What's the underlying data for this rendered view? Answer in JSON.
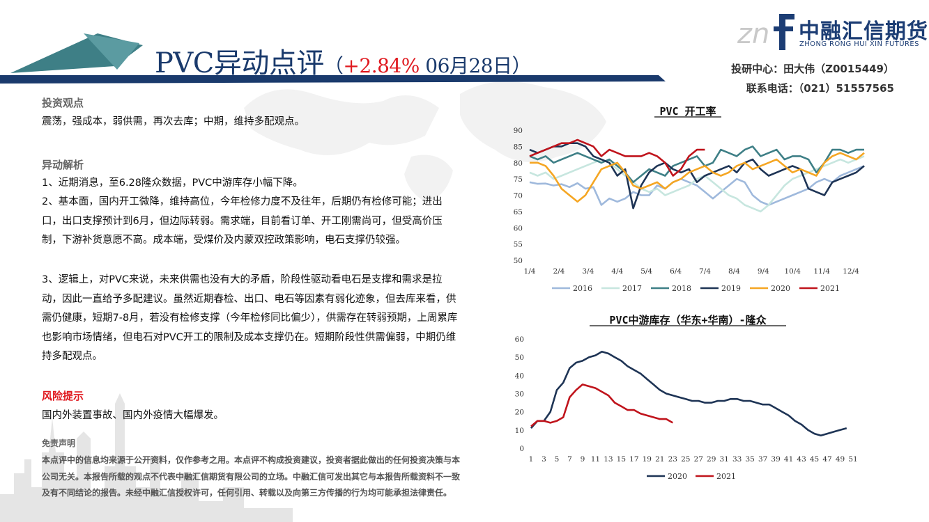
{
  "header": {
    "title_main": "PVC异动点评",
    "paren_open": "（",
    "change_pct": "+2.84%",
    "date": "06月28日",
    "paren_close": "）",
    "logo_cn": "中融汇信期货",
    "logo_en": "ZHONG RONG HUI XIN FUTURES",
    "research": "投研中心：田大伟（Z0015449）",
    "phone": "联系电话：（021）51557565"
  },
  "colors": {
    "navy": "#1a3a6c",
    "accent_red": "#e0191f",
    "teal": "#3e7f86"
  },
  "sections": {
    "view_title": "投资观点",
    "view_text": "震荡，强成本，弱供需，再次去库；中期，维持多配观点。",
    "analysis_title": "异动解析",
    "analysis_1": "1、近期消息，至6.28隆众数据，PVC中游库存小幅下降。",
    "analysis_2": "2、基本面，国内开工微降，维持高位，今年检修力度不及往年，后期仍有检修可能；进出口，出口支撑预计到6月，但边际转弱。需求端，目前看订单、开工刚需尚可，但受高价压制，下游补货意愿不高。成本端，受煤价及内蒙双控政策影响，电石支撑仍较强。",
    "analysis_3": "3、逻辑上，对PVC来说，未来供需也没有大的矛盾，阶段性驱动看电石是支撑和需求是拉动，因此一直给予多配建议。虽然近期春检、出口、电石等因素有弱化迹象，但去库来看，供需仍健康，短期7-8月，若没有检修支撑（今年检修同比偏少），供需存在转弱预期，上周累库也影响市场情绪，但电石对PVC开工的限制及成本支撑仍在。短期阶段性供需偏弱，中期仍维持多配观点。",
    "risk_title": "风险提示",
    "risk_text": "国内外装置事故、国内外疫情大幅爆发。",
    "disclaimer_title": "免责声明",
    "disclaimer_text": "本点评中的信息均来源于公开资料，仅作参考之用。本点评不构成投资建议，投资者据此做出的任何投资决策与本公司无关。本报告所载的观点不代表中融汇信期货有限公司的立场。中融汇信可发出其它与本报告所载资料不一致及有不同结论的报告。未经中融汇信授权许可，任何引用、转载以及向第三方传播的行为均可能承担法律责任。"
  },
  "chart_data": [
    {
      "type": "line",
      "title": "PVC 开工率",
      "ylim": [
        50,
        90
      ],
      "yticks": [
        "50",
        "55",
        "60",
        "65",
        "70",
        "75",
        "80",
        "85",
        "90"
      ],
      "xticks": [
        "1/4",
        "2/4",
        "3/4",
        "4/4",
        "5/4",
        "6/4",
        "7/4",
        "8/4",
        "9/4",
        "10/4",
        "11/4",
        "12/4"
      ],
      "legend_position": "bottom",
      "series": [
        {
          "name": "2016",
          "color": "#9fb9dc",
          "values": [
            74,
            73.5,
            73.6,
            73,
            73.4,
            72.5,
            73.7,
            72,
            72.5,
            67,
            69,
            68,
            69,
            71,
            70,
            70,
            73,
            72,
            74,
            75,
            74,
            73,
            71,
            69,
            71,
            73,
            75,
            74,
            70,
            68,
            67,
            68,
            69,
            70,
            71,
            72,
            74,
            75,
            74,
            76,
            77,
            78,
            79
          ]
        },
        {
          "name": "2017",
          "color": "#c7e6df",
          "values": [
            77,
            76,
            77,
            75,
            76,
            77,
            78,
            79,
            80,
            81,
            80,
            78,
            76,
            74,
            72,
            71,
            72,
            70,
            71,
            72,
            73,
            75,
            76,
            74,
            72,
            70,
            69,
            67,
            66,
            65,
            67,
            70,
            73,
            75,
            76,
            77,
            78,
            79,
            80,
            81,
            80,
            81,
            82
          ]
        },
        {
          "name": "2018",
          "color": "#3e7f86",
          "values": [
            82,
            81,
            82,
            80,
            81,
            82,
            83,
            82,
            81,
            80,
            81,
            79,
            77,
            74,
            76,
            78,
            77,
            76,
            79,
            80,
            81,
            82,
            79,
            80,
            84,
            83,
            82,
            84,
            85,
            82,
            83,
            84,
            81,
            82,
            82,
            81,
            77,
            80,
            84,
            84,
            83,
            84,
            84
          ]
        },
        {
          "name": "2019",
          "color": "#1e3455",
          "values": [
            84,
            83,
            84,
            85,
            85,
            86,
            86,
            85,
            82,
            81,
            80,
            76,
            78,
            66,
            73,
            77,
            79,
            80,
            78,
            77,
            78,
            74,
            76,
            77,
            78,
            79,
            77,
            80,
            81,
            78,
            76,
            77,
            78,
            79,
            78,
            72,
            71,
            70,
            74,
            75,
            76,
            77,
            79
          ]
        },
        {
          "name": "2020",
          "color": "#f5a623",
          "values": [
            80,
            80,
            79,
            76,
            72,
            70,
            68,
            70,
            74,
            78,
            79,
            80,
            77,
            73,
            72,
            73,
            74,
            72,
            74,
            75,
            77,
            78,
            79,
            77,
            76,
            77,
            79,
            80,
            78,
            79,
            80,
            81,
            79,
            77,
            78,
            77,
            76,
            80,
            82,
            83,
            82,
            81,
            83
          ]
        },
        {
          "name": "2021",
          "color": "#c0141c",
          "values": [
            82,
            83,
            84,
            85,
            86,
            86,
            87,
            86,
            85,
            82,
            84,
            83,
            82,
            82,
            82,
            83,
            82,
            80,
            76,
            78,
            82,
            84,
            84
          ]
        }
      ]
    },
    {
      "type": "line",
      "title": "PVC中游库存（华东+华南）-隆众",
      "ylim": [
        0,
        60
      ],
      "yticks": [
        "0",
        "10",
        "20",
        "30",
        "40",
        "50",
        "60"
      ],
      "xticks": [
        "1",
        "3",
        "5",
        "7",
        "9",
        "11",
        "13",
        "15",
        "17",
        "19",
        "21",
        "23",
        "25",
        "27",
        "29",
        "31",
        "33",
        "35",
        "37",
        "39",
        "41",
        "43",
        "45",
        "47",
        "49",
        "51"
      ],
      "legend_position": "bottom",
      "series": [
        {
          "name": "2020",
          "color": "#1e3455",
          "values": [
            11,
            15,
            15,
            20,
            32,
            36,
            44,
            47,
            48,
            50,
            51,
            53,
            52,
            50,
            48,
            45,
            43,
            41,
            38,
            35,
            32,
            30,
            29,
            28,
            27,
            26,
            26,
            25,
            25,
            26,
            26,
            27,
            27,
            26,
            26,
            25,
            24,
            24,
            22,
            20,
            18,
            15,
            13,
            10,
            8,
            7,
            8,
            9,
            10,
            11
          ]
        },
        {
          "name": "2021",
          "color": "#c0141c",
          "values": [
            12,
            15,
            15,
            14,
            15,
            17,
            28,
            32,
            35,
            34,
            33,
            31,
            29,
            25,
            23,
            21,
            21,
            19,
            18,
            17,
            16,
            16,
            14
          ]
        }
      ]
    }
  ]
}
